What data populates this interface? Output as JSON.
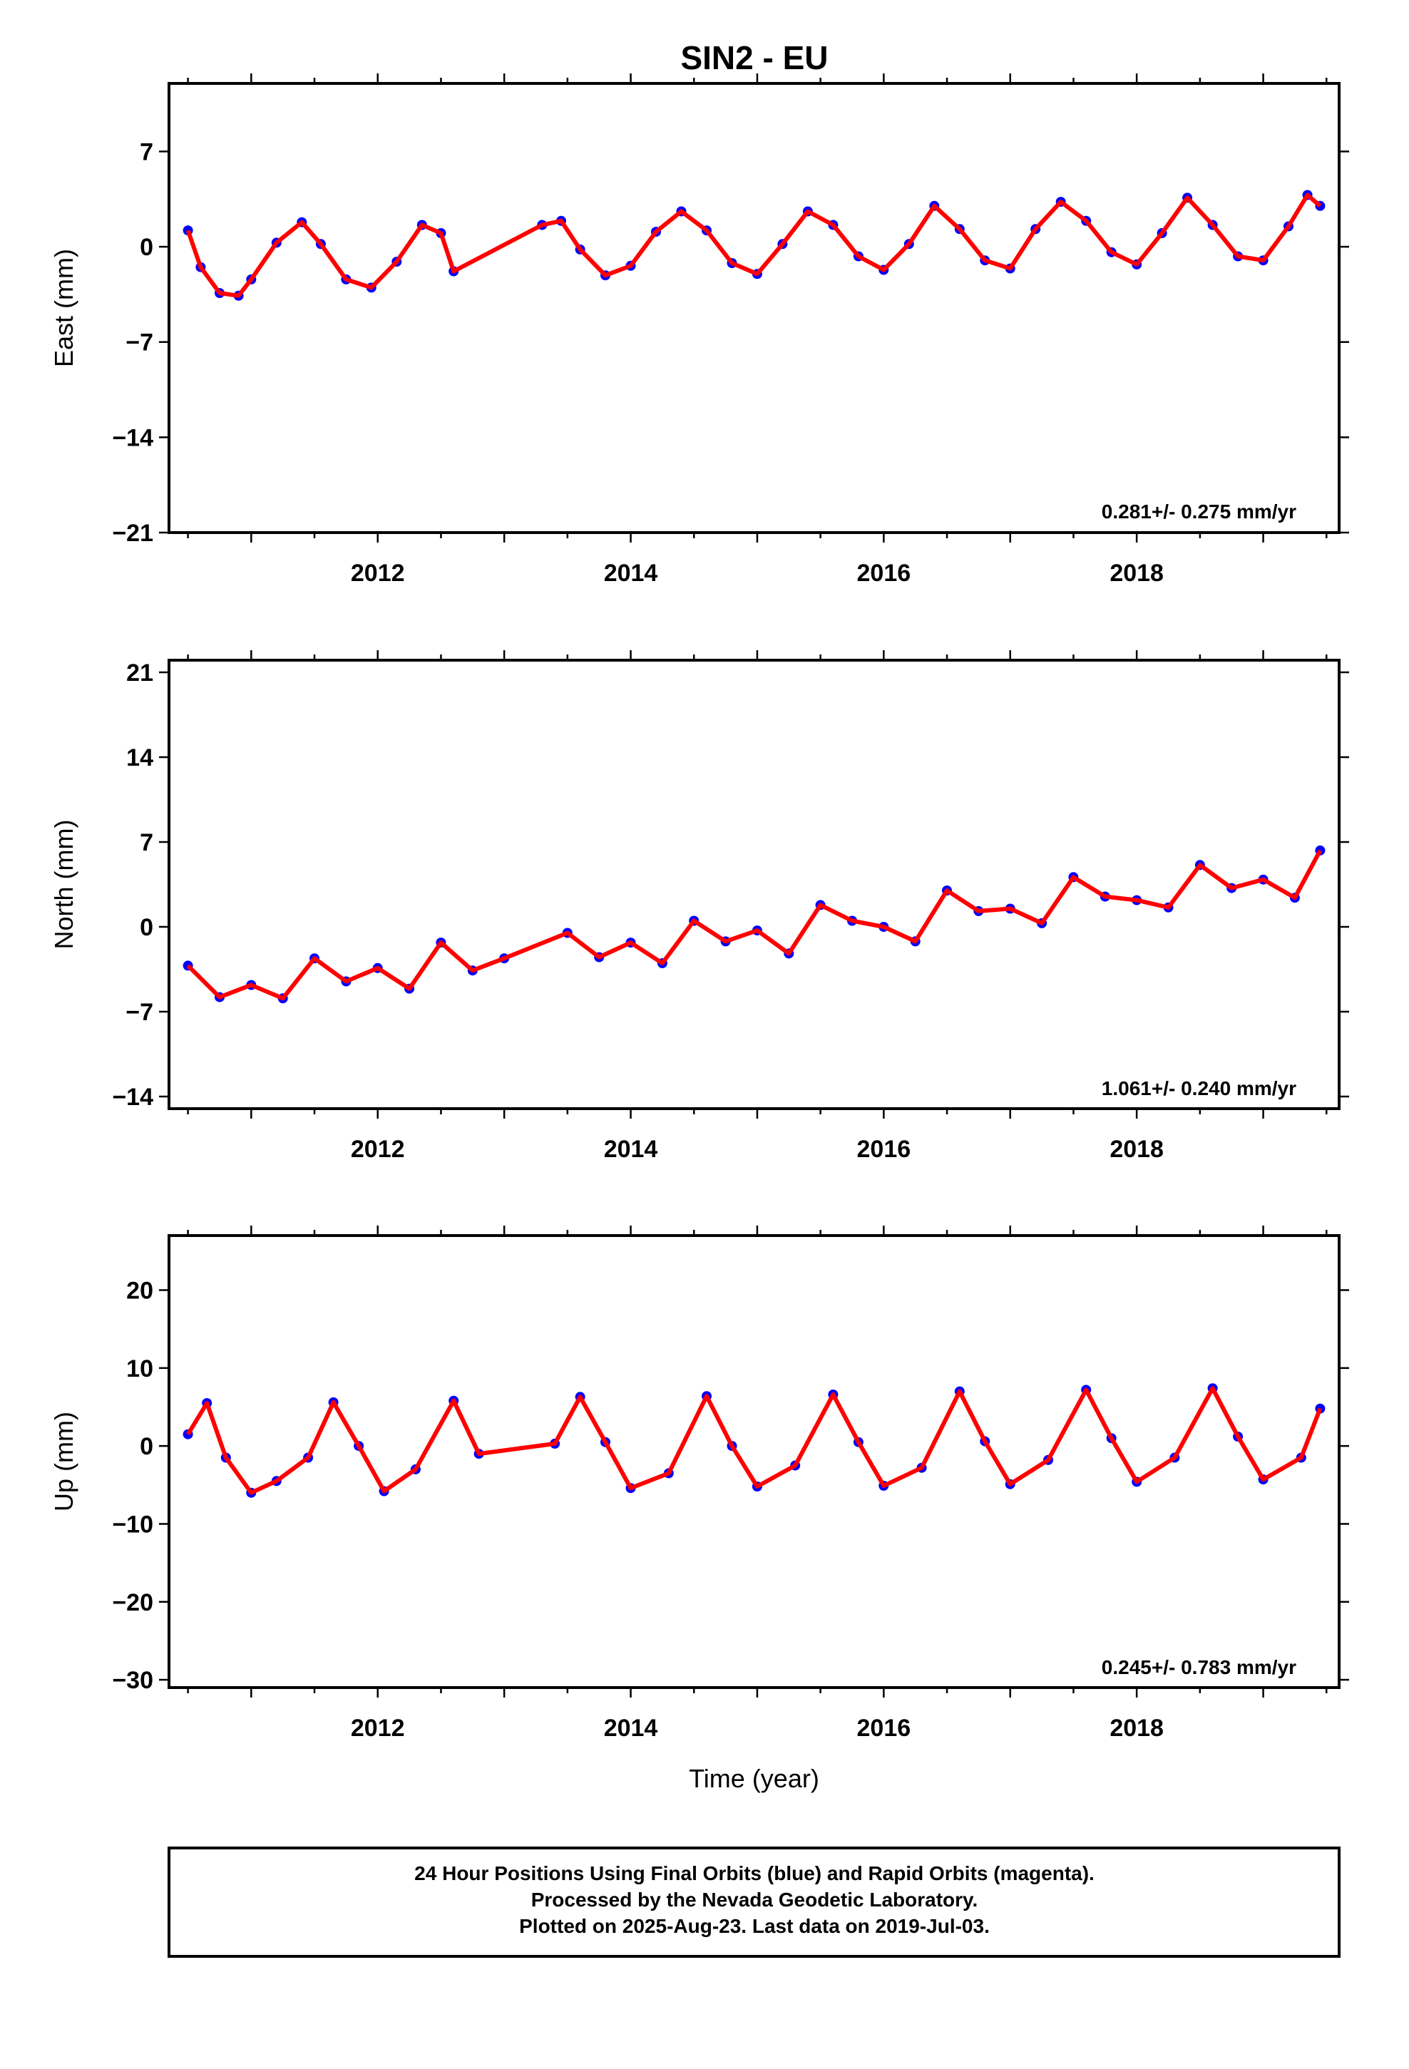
{
  "title": "SIN2 - EU",
  "colors": {
    "observations": "#0000ff",
    "model": "#ff0000",
    "frame": "#000000"
  },
  "chart_data": [
    {
      "type": "scatter",
      "ylabel": "East (mm)",
      "xlabel": "",
      "xlim": [
        2010.35,
        2019.6
      ],
      "ylim": [
        -21,
        12
      ],
      "yticks": [
        -21,
        -14,
        -7,
        0,
        7
      ],
      "xticks": [
        2012,
        2014,
        2016,
        2018
      ],
      "rate_label": "0.281+/- 0.275 mm/yr",
      "series": [
        {
          "style": "points",
          "x": [
            2010.5,
            2010.6,
            2010.75,
            2010.9,
            2011.0,
            2011.2,
            2011.4,
            2011.55,
            2011.75,
            2011.95,
            2012.15,
            2012.35,
            2012.5,
            2012.6,
            2013.3,
            2013.45,
            2013.6,
            2013.8,
            2014.0,
            2014.2,
            2014.4,
            2014.6,
            2014.8,
            2015.0,
            2015.2,
            2015.4,
            2015.6,
            2015.8,
            2016.0,
            2016.2,
            2016.4,
            2016.6,
            2016.8,
            2017.0,
            2017.2,
            2017.4,
            2017.6,
            2017.8,
            2018.0,
            2018.2,
            2018.4,
            2018.6,
            2018.8,
            2019.0,
            2019.2,
            2019.35,
            2019.45
          ],
          "y": [
            1.2,
            -1.5,
            -3.4,
            -3.6,
            -2.4,
            0.3,
            1.8,
            0.2,
            -2.4,
            -3.0,
            -1.1,
            1.6,
            1.0,
            -1.8,
            1.6,
            1.9,
            -0.2,
            -2.1,
            -1.4,
            1.1,
            2.6,
            1.2,
            -1.2,
            -2.0,
            0.2,
            2.6,
            1.6,
            -0.7,
            -1.7,
            0.2,
            3.0,
            1.3,
            -1.0,
            -1.6,
            1.3,
            3.3,
            1.9,
            -0.4,
            -1.3,
            1.0,
            3.6,
            1.6,
            -0.7,
            -1.0,
            1.5,
            3.8,
            3.0
          ]
        }
      ]
    },
    {
      "type": "scatter",
      "ylabel": "North (mm)",
      "xlabel": "",
      "xlim": [
        2010.35,
        2019.6
      ],
      "ylim": [
        -15,
        22
      ],
      "yticks": [
        -14,
        -7,
        0,
        7,
        14,
        21
      ],
      "xticks": [
        2012,
        2014,
        2016,
        2018
      ],
      "rate_label": "1.061+/- 0.240 mm/yr",
      "series": [
        {
          "style": "points",
          "x": [
            2010.5,
            2010.75,
            2011.0,
            2011.25,
            2011.5,
            2011.75,
            2012.0,
            2012.25,
            2012.5,
            2012.75,
            2013.0,
            2013.5,
            2013.75,
            2014.0,
            2014.25,
            2014.5,
            2014.75,
            2015.0,
            2015.25,
            2015.5,
            2015.75,
            2016.0,
            2016.25,
            2016.5,
            2016.75,
            2017.0,
            2017.25,
            2017.5,
            2017.75,
            2018.0,
            2018.25,
            2018.5,
            2018.75,
            2019.0,
            2019.25,
            2019.45
          ],
          "y": [
            -3.2,
            -5.8,
            -4.8,
            -5.9,
            -2.6,
            -4.5,
            -3.4,
            -5.1,
            -1.3,
            -3.6,
            -2.6,
            -0.5,
            -2.5,
            -1.3,
            -3.0,
            0.5,
            -1.2,
            -0.3,
            -2.2,
            1.8,
            0.5,
            0.0,
            -1.2,
            3.0,
            1.3,
            1.5,
            0.3,
            4.1,
            2.5,
            2.2,
            1.6,
            5.1,
            3.2,
            3.9,
            2.4,
            6.3
          ]
        }
      ]
    },
    {
      "type": "scatter",
      "ylabel": "Up (mm)",
      "xlabel": "Time (year)",
      "xlim": [
        2010.35,
        2019.6
      ],
      "ylim": [
        -31,
        27
      ],
      "yticks": [
        -30,
        -20,
        -10,
        0,
        10,
        20
      ],
      "xticks": [
        2012,
        2014,
        2016,
        2018
      ],
      "rate_label": "0.245+/- 0.783 mm/yr",
      "series": [
        {
          "style": "points",
          "x": [
            2010.5,
            2010.65,
            2010.8,
            2011.0,
            2011.2,
            2011.45,
            2011.65,
            2011.85,
            2012.05,
            2012.3,
            2012.6,
            2012.8,
            2013.4,
            2013.6,
            2013.8,
            2014.0,
            2014.3,
            2014.6,
            2014.8,
            2015.0,
            2015.3,
            2015.6,
            2015.8,
            2016.0,
            2016.3,
            2016.6,
            2016.8,
            2017.0,
            2017.3,
            2017.6,
            2017.8,
            2018.0,
            2018.3,
            2018.6,
            2018.8,
            2019.0,
            2019.3,
            2019.45
          ],
          "y": [
            1.5,
            5.5,
            -1.5,
            -6.0,
            -4.5,
            -1.5,
            5.6,
            0.0,
            -5.8,
            -3.0,
            5.8,
            -1.0,
            0.3,
            6.3,
            0.5,
            -5.4,
            -3.5,
            6.4,
            0.0,
            -5.2,
            -2.5,
            6.6,
            0.5,
            -5.1,
            -2.8,
            7.0,
            0.6,
            -4.9,
            -1.8,
            7.2,
            1.0,
            -4.6,
            -1.5,
            7.4,
            1.2,
            -4.3,
            -1.5,
            4.8
          ]
        }
      ]
    }
  ],
  "footer": {
    "line1": "24 Hour Positions Using Final Orbits (blue) and Rapid Orbits (magenta).",
    "line2": "Processed by the Nevada Geodetic Laboratory.",
    "line3": "Plotted on 2025-Aug-23. Last data on 2019-Jul-03."
  }
}
